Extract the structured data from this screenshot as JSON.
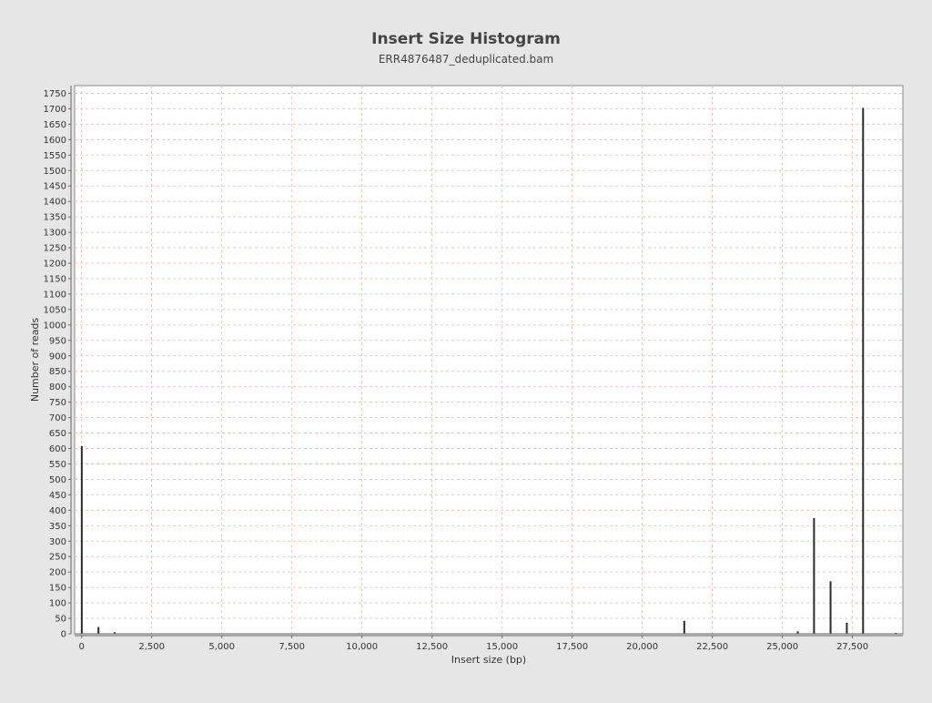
{
  "chart_data": {
    "type": "bar",
    "title": "Insert Size Histogram",
    "subtitle": "ERR4876487_deduplicated.bam",
    "xlabel": "Insert size (bp)",
    "ylabel": "Number of reads",
    "xlim": [
      -250,
      29300
    ],
    "ylim": [
      0,
      1775
    ],
    "x_ticks": [
      0,
      2500,
      5000,
      7500,
      10000,
      12500,
      15000,
      17500,
      20000,
      22500,
      25000,
      27500
    ],
    "x_tick_labels": [
      "0",
      "2,500",
      "5,000",
      "7,500",
      "10,000",
      "12,500",
      "15,000",
      "17,500",
      "20,000",
      "22,500",
      "25,000",
      "27,500"
    ],
    "y_ticks": [
      0,
      50,
      100,
      150,
      200,
      250,
      300,
      350,
      400,
      450,
      500,
      550,
      600,
      650,
      700,
      750,
      800,
      850,
      900,
      950,
      1000,
      1050,
      1100,
      1150,
      1200,
      1250,
      1300,
      1350,
      1400,
      1450,
      1500,
      1550,
      1600,
      1650,
      1700,
      1750
    ],
    "grid": true,
    "legend": "none",
    "colors": {
      "bar": "#2b2b2b",
      "plot_background": "#ffffff",
      "page_background": "#e6e6e6",
      "grid_vertical": "#f0c8b8",
      "grid_horizontal": "#f0c8b8",
      "axis": "#666666",
      "title": "#444444",
      "text": "#333333"
    },
    "series": [
      {
        "x": [
          5,
          600,
          1180,
          9900,
          21500,
          25550,
          26130,
          26720,
          27300,
          27880,
          29050
        ],
        "values": [
          608,
          22,
          5,
          2,
          42,
          8,
          375,
          170,
          36,
          1703,
          3
        ]
      }
    ]
  }
}
